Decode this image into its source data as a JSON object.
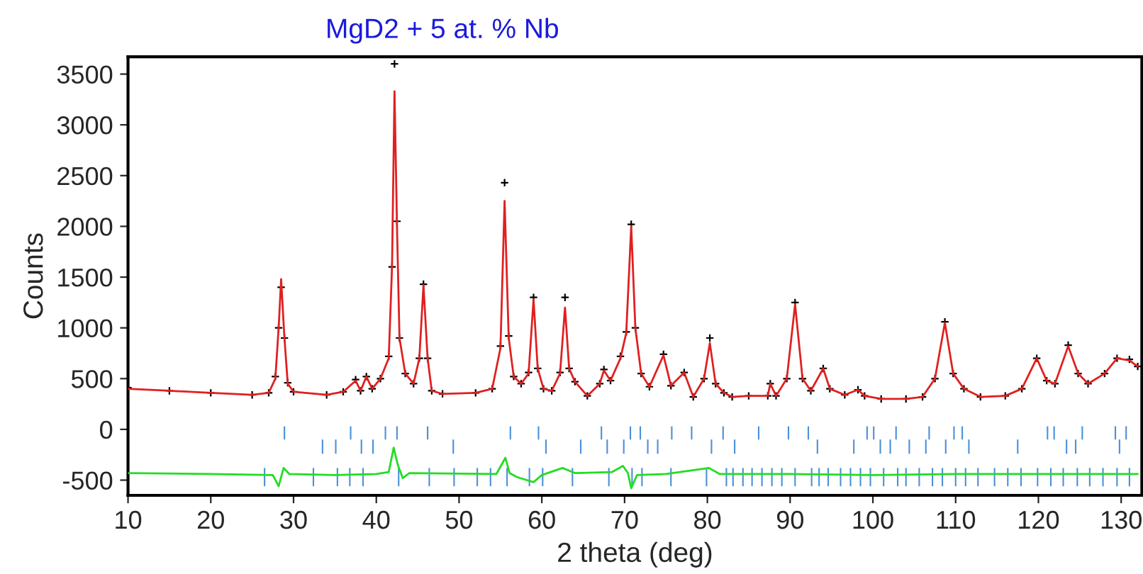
{
  "chart_data": {
    "type": "line",
    "title": "MgD2 + 5 at. % Nb",
    "xlabel": "2 theta (deg)",
    "ylabel": "Counts",
    "xlim": [
      10,
      132.5
    ],
    "ylim": [
      -650,
      3670
    ],
    "xticks": [
      10,
      20,
      30,
      40,
      50,
      60,
      70,
      80,
      90,
      100,
      110,
      120,
      130
    ],
    "yticks": [
      -500,
      0,
      500,
      1000,
      1500,
      2000,
      2500,
      3000,
      3500
    ],
    "grid": false,
    "legend": false,
    "series": [
      {
        "type": "scatter",
        "marker": "cross",
        "color": "#000000",
        "x": [
          10,
          15,
          20,
          25,
          27,
          27.8,
          28.2,
          28.5,
          28.9,
          29.3,
          30,
          34,
          36,
          37.5,
          38.1,
          38.8,
          39.5,
          40.5,
          41.5,
          41.9,
          42.2,
          42.5,
          42.8,
          43.5,
          44.5,
          45.2,
          45.7,
          46.2,
          46.7,
          48,
          52,
          54,
          55,
          55.5,
          56,
          56.6,
          57.5,
          58.4,
          59,
          59.5,
          60.2,
          61.2,
          62.2,
          62.8,
          63.3,
          64,
          65.5,
          67,
          67.5,
          68.3,
          69.5,
          70.2,
          70.8,
          71.3,
          72,
          73,
          74.7,
          75.6,
          77.2,
          78.3,
          79.6,
          80.3,
          81,
          82,
          83,
          85,
          87.3,
          87.6,
          88.3,
          89.6,
          90.6,
          91.5,
          92.5,
          94,
          94.8,
          96.6,
          98.2,
          99,
          101,
          104,
          106,
          107.5,
          108.7,
          109.7,
          111,
          113,
          116,
          118,
          119.8,
          121,
          122,
          123.6,
          124.8,
          126,
          128,
          129.5,
          131,
          132
        ],
        "values": [
          410,
          380,
          360,
          340,
          360,
          520,
          1000,
          1400,
          900,
          460,
          370,
          340,
          370,
          490,
          380,
          520,
          400,
          500,
          720,
          1600,
          3600,
          2050,
          900,
          550,
          450,
          700,
          1430,
          700,
          380,
          350,
          360,
          400,
          820,
          2430,
          920,
          520,
          450,
          560,
          1300,
          600,
          400,
          380,
          560,
          1300,
          600,
          470,
          330,
          450,
          590,
          480,
          720,
          960,
          2020,
          1000,
          550,
          420,
          740,
          430,
          560,
          320,
          500,
          900,
          450,
          360,
          320,
          330,
          330,
          450,
          330,
          500,
          1250,
          500,
          380,
          600,
          400,
          340,
          390,
          330,
          300,
          300,
          320,
          500,
          1060,
          550,
          400,
          320,
          330,
          400,
          700,
          480,
          450,
          830,
          550,
          450,
          550,
          700,
          690,
          620
        ]
      },
      {
        "color": "#e02020",
        "x": [
          10,
          15,
          20,
          25,
          27,
          27.8,
          28.2,
          28.5,
          28.9,
          29.3,
          30,
          34,
          36,
          37.5,
          38.1,
          38.8,
          39.5,
          40.5,
          41.5,
          41.9,
          42.2,
          42.5,
          42.8,
          43.5,
          44.5,
          45.2,
          45.7,
          46.2,
          46.7,
          48,
          52,
          54,
          55,
          55.5,
          56,
          56.6,
          57.5,
          58.4,
          59,
          59.5,
          60.2,
          61.2,
          62.2,
          62.8,
          63.3,
          64,
          65.5,
          67,
          67.5,
          68.3,
          69.5,
          70.2,
          70.8,
          71.3,
          72,
          73,
          74.7,
          75.6,
          77.2,
          78.3,
          79.6,
          80.3,
          81,
          82,
          83,
          85,
          87.3,
          87.6,
          88.3,
          89.6,
          90.6,
          91.5,
          92.5,
          94,
          94.8,
          96.6,
          98.2,
          99,
          101,
          104,
          106,
          107.5,
          108.7,
          109.7,
          111,
          113,
          116,
          118,
          119.8,
          121,
          122,
          123.6,
          124.8,
          126,
          128,
          129.5,
          131,
          132
        ],
        "values": [
          400,
          380,
          360,
          340,
          360,
          500,
          1000,
          1480,
          900,
          450,
          370,
          340,
          370,
          480,
          380,
          520,
          400,
          500,
          700,
          1600,
          3330,
          2000,
          900,
          550,
          450,
          700,
          1420,
          700,
          380,
          350,
          360,
          400,
          800,
          2250,
          900,
          520,
          450,
          550,
          1280,
          600,
          400,
          380,
          550,
          1200,
          600,
          470,
          330,
          450,
          580,
          480,
          700,
          950,
          2000,
          1000,
          550,
          420,
          730,
          430,
          560,
          320,
          500,
          850,
          450,
          360,
          320,
          330,
          330,
          450,
          330,
          500,
          1230,
          500,
          380,
          600,
          400,
          340,
          390,
          330,
          300,
          300,
          320,
          500,
          1050,
          550,
          400,
          320,
          330,
          400,
          700,
          480,
          450,
          820,
          550,
          450,
          550,
          700,
          680,
          620
        ]
      },
      {
        "color": "#22dd22",
        "x": [
          10,
          20,
          27.5,
          28.2,
          28.8,
          29.5,
          35,
          40,
          41.5,
          42.1,
          42.6,
          43.2,
          44,
          54.5,
          55.6,
          56.1,
          57,
          59,
          60,
          62.5,
          64,
          68.5,
          69.8,
          70.4,
          70.8,
          71.5,
          75,
          80.2,
          81.5,
          90,
          100,
          110,
          120,
          132
        ],
        "values": [
          -430,
          -440,
          -450,
          -560,
          -380,
          -440,
          -450,
          -440,
          -420,
          -180,
          -350,
          -480,
          -430,
          -440,
          -280,
          -430,
          -470,
          -520,
          -450,
          -380,
          -430,
          -420,
          -360,
          -430,
          -580,
          -450,
          -440,
          -380,
          -440,
          -440,
          -450,
          -440,
          -440,
          -440
        ]
      },
      {
        "type": "bar",
        "color": "#4a90d9",
        "x": [
          26.5,
          28.9,
          32.4,
          33.5,
          35.1,
          35.3,
          36.8,
          36.9,
          38.2,
          38.4,
          39.6,
          41.1,
          42.5,
          42.7,
          46.2,
          46.4,
          49.3,
          49.4,
          52.2,
          53.8,
          55.8,
          56.2,
          58.5,
          59.6,
          60.1,
          60.5,
          63.7,
          64.7,
          67.2,
          67.9,
          68.1,
          69.9,
          70.7,
          70.9,
          71.9,
          72.1,
          72.8,
          74.0,
          75.6,
          75.7,
          78.1,
          79.9,
          80.5,
          81.9,
          82.3,
          83.1,
          83.3,
          84.3,
          85.4,
          86.2,
          86.6,
          87.8,
          89.0,
          89.8,
          90.6,
          92.2,
          92.6,
          93.3,
          93.5,
          94.6,
          96.1,
          97.3,
          97.7,
          98.5,
          99.3,
          99.7,
          100.1,
          100.9,
          101.3,
          102.1,
          102.8,
          103.0,
          104.0,
          104.4,
          105.6,
          106.4,
          106.8,
          107.2,
          108.4,
          108.8,
          109.8,
          110.0,
          110.8,
          111.2,
          111.6,
          112.7,
          114.7,
          116.3,
          117.5,
          117.9,
          119.9,
          121.1,
          121.5,
          121.9,
          123.0,
          123.4,
          124.5,
          124.7,
          125.3,
          126.2,
          127.8,
          129.3,
          129.5,
          129.8,
          130.6,
          131.0
        ],
        "base": [
          -560,
          -100,
          -560,
          -240,
          -240,
          -560,
          -560,
          -100,
          -240,
          -560,
          -240,
          -100,
          -100,
          -560,
          -100,
          -560,
          -240,
          -560,
          -560,
          -560,
          -560,
          -100,
          -560,
          -100,
          -560,
          -240,
          -560,
          -240,
          -100,
          -240,
          -560,
          -240,
          -100,
          -560,
          -100,
          -560,
          -240,
          -240,
          -560,
          -100,
          -100,
          -560,
          -240,
          -100,
          -560,
          -560,
          -240,
          -560,
          -560,
          -100,
          -560,
          -560,
          -560,
          -100,
          -560,
          -100,
          -560,
          -240,
          -560,
          -560,
          -560,
          -560,
          -240,
          -560,
          -100,
          -560,
          -100,
          -240,
          -560,
          -240,
          -100,
          -560,
          -560,
          -240,
          -560,
          -240,
          -100,
          -560,
          -560,
          -240,
          -100,
          -560,
          -100,
          -560,
          -240,
          -560,
          -560,
          -560,
          -240,
          -560,
          -560,
          -100,
          -560,
          -100,
          -560,
          -240,
          -240,
          -560,
          -100,
          -560,
          -560,
          -100,
          -560,
          -240,
          -100,
          -560
        ],
        "values": [
          180,
          130,
          180,
          140,
          140,
          180,
          180,
          130,
          140,
          180,
          140,
          130,
          130,
          180,
          130,
          180,
          140,
          180,
          180,
          180,
          180,
          130,
          180,
          130,
          180,
          140,
          180,
          140,
          130,
          140,
          180,
          140,
          130,
          180,
          130,
          180,
          140,
          140,
          180,
          130,
          130,
          180,
          140,
          130,
          180,
          180,
          140,
          180,
          180,
          130,
          180,
          180,
          180,
          130,
          180,
          130,
          180,
          140,
          180,
          180,
          180,
          180,
          140,
          180,
          130,
          180,
          130,
          140,
          180,
          140,
          130,
          180,
          180,
          140,
          180,
          140,
          130,
          180,
          180,
          140,
          130,
          180,
          130,
          180,
          140,
          180,
          180,
          180,
          140,
          180,
          180,
          130,
          180,
          130,
          180,
          140,
          140,
          180,
          130,
          180,
          180,
          130,
          180,
          140,
          130,
          180
        ]
      }
    ]
  }
}
